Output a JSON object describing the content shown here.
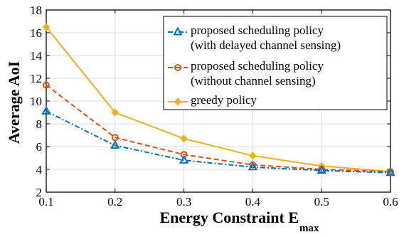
{
  "chart_data": {
    "type": "line",
    "title": "",
    "xlabel": "Energy Constraint E",
    "xlabel_subscript": "max",
    "ylabel": "Average AoI",
    "x": [
      0.1,
      0.2,
      0.3,
      0.4,
      0.5,
      0.6
    ],
    "xlim": [
      0.1,
      0.6
    ],
    "ylim": [
      2,
      18
    ],
    "xticks": [
      "0.1",
      "0.2",
      "0.3",
      "0.4",
      "0.5",
      "0.6"
    ],
    "yticks": [
      "2",
      "4",
      "6",
      "8",
      "10",
      "12",
      "14",
      "16",
      "18"
    ],
    "grid": true,
    "legend_position": "top-right",
    "series": [
      {
        "name_lines": [
          "proposed scheduling policy",
          " (with delayed channel sensing)"
        ],
        "values": [
          9.1,
          6.1,
          4.8,
          4.2,
          3.9,
          3.7
        ],
        "color": "#0072BD",
        "line_style": "dash-dot",
        "marker": "triangle"
      },
      {
        "name_lines": [
          "proposed scheduling policy",
          " (without channel sensing)"
        ],
        "values": [
          11.4,
          6.8,
          5.3,
          4.4,
          4.0,
          3.8
        ],
        "color": "#D95319",
        "line_style": "dashed",
        "marker": "circle"
      },
      {
        "name_lines": [
          "greedy policy"
        ],
        "values": [
          16.5,
          9.0,
          6.7,
          5.2,
          4.3,
          3.8
        ],
        "color": "#EDB120",
        "line_style": "solid",
        "marker": "diamond"
      }
    ]
  }
}
